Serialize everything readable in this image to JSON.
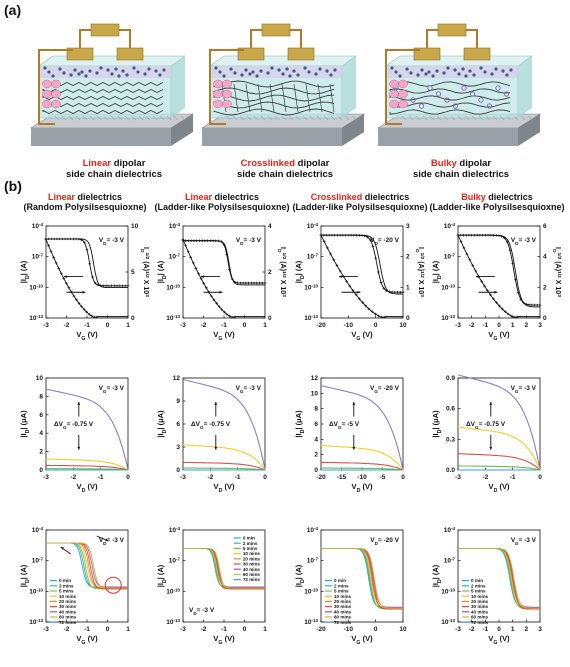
{
  "panel_a_label": "(a)",
  "panel_b_label": "(b)",
  "devices": [
    {
      "highlight": "Linear",
      "rest1": " dipolar",
      "line2": "side chain dielectrics"
    },
    {
      "highlight": "Crosslinked",
      "rest1": " dipolar",
      "line2": "side chain dielectrics"
    },
    {
      "highlight": "Bulky",
      "rest1": " dipolar",
      "line2": "side chain dielectrics"
    }
  ],
  "columns": [
    {
      "highlight": "Linear",
      "rest1": " dielectrics",
      "line2": "(Random Polysilsesquioxne)"
    },
    {
      "highlight": "Linear",
      "rest1": " dielectrics",
      "line2": "(Ladder-like Polysilsesquioxne)"
    },
    {
      "highlight": "Crosslinked",
      "rest1": " dielectrics",
      "line2": "(Ladder-like Polysilsesquioxne)"
    },
    {
      "highlight": "Bulky",
      "rest1": " dielectrics",
      "line2": "(Ladder-like Polysilsesquioxne)"
    }
  ],
  "colors": {
    "highlight": "#e0231b",
    "purple": "#8e7cc3",
    "yellow": "#f2d028",
    "red": "#d9534f",
    "green": "#6bbf4e",
    "blue": "#3aa0d8",
    "timeline": [
      "#3aa0d8",
      "#2eb8b0",
      "#7cc242",
      "#f2c230",
      "#f08a24",
      "#e8462e",
      "#9b59b6",
      "#c8b93a"
    ]
  },
  "legend_times": [
    "0 min",
    "2 mins",
    "5 mins",
    "10 mins",
    "20 mins",
    "30 mins",
    "40 mins",
    "60 mins",
    "72 mins"
  ],
  "chart_data": [
    {
      "type": "line",
      "row": "transfer",
      "column": 1,
      "xlabel": "V_G (V)",
      "ylabel": "|I_D| (A)",
      "y2label": "I_D^1/2 (A)^1/2 X 10^3",
      "x_ticks": [
        "-3",
        "-2",
        "-1",
        "0",
        "1"
      ],
      "y_ticks": [
        "10^-4",
        "10^-7",
        "10^-10",
        "10^-13"
      ],
      "y2_ticks": [
        "10",
        "5",
        "0"
      ],
      "annotation": "V_D= -3 V"
    },
    {
      "type": "line",
      "row": "transfer",
      "column": 2,
      "xlabel": "V_G (V)",
      "ylabel": "|I_D| (A)",
      "y2label": "I_D^1/2 (A)^1/2 X 10^3",
      "x_ticks": [
        "-3",
        "-2",
        "-1",
        "0",
        "1"
      ],
      "y_ticks": [
        "10^-4",
        "10^-7",
        "10^-10",
        "10^-13"
      ],
      "y2_ticks": [
        "4",
        "2",
        "0"
      ],
      "annotation": "V_D= -3 V"
    },
    {
      "type": "line",
      "row": "transfer",
      "column": 3,
      "xlabel": "V_G (V)",
      "ylabel": "|I_D| (A)",
      "y2label": "I_D^1/2 (A)^1/2 X 10^3",
      "x_ticks": [
        "-20",
        "-10",
        "0",
        "10"
      ],
      "y_ticks": [
        "10^-4",
        "10^-7",
        "10^-10",
        "10^-13"
      ],
      "y2_ticks": [
        "3",
        "2",
        "1",
        "0"
      ],
      "annotation": "V_D= -20 V"
    },
    {
      "type": "line",
      "row": "transfer",
      "column": 4,
      "xlabel": "V_G (V)",
      "ylabel": "|I_D| (A)",
      "y2label": "I_D^1/2 (A)^1/2 X 10^3",
      "x_ticks": [
        "-3",
        "-2",
        "-1",
        "0",
        "1",
        "2",
        "3"
      ],
      "y_ticks": [
        "10^-4",
        "10^-7",
        "10^-10",
        "10^-13"
      ],
      "y2_ticks": [
        "6",
        "4",
        "2",
        "0"
      ],
      "annotation": "V_D= -3 V"
    },
    {
      "type": "line",
      "row": "output",
      "column": 1,
      "xlabel": "V_D (V)",
      "ylabel": "|I_D| (μA)",
      "x_ticks": [
        "-3",
        "-2",
        "-1",
        "0"
      ],
      "y_ticks": [
        "10",
        "8",
        "6",
        "4",
        "2",
        "0"
      ],
      "ylim": [
        0,
        10
      ],
      "annotation": "V_G= -3 V",
      "shift": "ΔV_G= -0.75 V",
      "series": [
        {
          "color": "purple",
          "end": 8.8
        },
        {
          "color": "yellow",
          "end": 1.2
        },
        {
          "color": "red",
          "end": 0.5
        },
        {
          "color": "green",
          "end": 0.15
        }
      ]
    },
    {
      "type": "line",
      "row": "output",
      "column": 2,
      "xlabel": "V_D (V)",
      "ylabel": "|I_D| (μA)",
      "x_ticks": [
        "-3",
        "-2",
        "-1",
        "0"
      ],
      "y_ticks": [
        "12",
        "9",
        "6",
        "3",
        "0"
      ],
      "ylim": [
        0,
        12
      ],
      "annotation": "V_G= -3 V",
      "shift": "ΔV_G= -0.75 V",
      "series": [
        {
          "color": "purple",
          "end": 11.8
        },
        {
          "color": "yellow",
          "end": 3.3
        },
        {
          "color": "red",
          "end": 1.0
        },
        {
          "color": "green",
          "end": 0.25
        }
      ]
    },
    {
      "type": "line",
      "row": "output",
      "column": 3,
      "xlabel": "V_D (V)",
      "ylabel": "|I_D| (μA)",
      "x_ticks": [
        "-20",
        "-15",
        "-10",
        "-5",
        "0"
      ],
      "y_ticks": [
        "12",
        "10",
        "8",
        "6",
        "4",
        "2",
        "0"
      ],
      "ylim": [
        0,
        12
      ],
      "annotation": "V_G= -20 V",
      "shift": "ΔV_G= -5 V",
      "series": [
        {
          "color": "purple",
          "end": 11
        },
        {
          "color": "yellow",
          "end": 3.2
        },
        {
          "color": "red",
          "end": 1.0
        },
        {
          "color": "green",
          "end": 0.25
        }
      ]
    },
    {
      "type": "line",
      "row": "output",
      "column": 4,
      "xlabel": "V_D (V)",
      "ylabel": "|I_D| (μA)",
      "x_ticks": [
        "-3",
        "-2",
        "-1",
        "0"
      ],
      "y_ticks": [
        "0.9",
        "0.6",
        "0.3",
        "0.0"
      ],
      "ylim": [
        0,
        0.9
      ],
      "annotation": "V_G= -3 V",
      "shift": "ΔV_G= -0.75 V",
      "series": [
        {
          "color": "purple",
          "end": 0.93
        },
        {
          "color": "yellow",
          "end": 0.42
        },
        {
          "color": "red",
          "end": 0.16
        },
        {
          "color": "green",
          "end": 0.04
        }
      ]
    },
    {
      "type": "line",
      "row": "stress",
      "column": 1,
      "xlabel": "V_G (V)",
      "ylabel": "|I_D| (A)",
      "x_ticks": [
        "-3",
        "-2",
        "-1",
        "0",
        "1"
      ],
      "y_ticks": [
        "10^-4",
        "10^-7",
        "10^-10",
        "10^-13"
      ],
      "annotation": "V_D= -3 V"
    },
    {
      "type": "line",
      "row": "stress",
      "column": 2,
      "xlabel": "V_G (V)",
      "ylabel": "|I_D| (A)",
      "x_ticks": [
        "-3",
        "-2",
        "-1",
        "0",
        "1"
      ],
      "y_ticks": [
        "10^-4",
        "10^-7",
        "10^-10",
        "10^-13"
      ],
      "annotation": "V_D= -3 V"
    },
    {
      "type": "line",
      "row": "stress",
      "column": 3,
      "xlabel": "V_G (V)",
      "ylabel": "|I_D| (A)",
      "x_ticks": [
        "-20",
        "-10",
        "0",
        "10"
      ],
      "y_ticks": [
        "10^-4",
        "10^-7",
        "10^-10",
        "10^-13"
      ],
      "annotation": "V_D= -20 V"
    },
    {
      "type": "line",
      "row": "stress",
      "column": 4,
      "xlabel": "V_G (V)",
      "ylabel": "|I_D| (A)",
      "x_ticks": [
        "-3",
        "-2",
        "-1",
        "0",
        "1",
        "2",
        "3"
      ],
      "y_ticks": [
        "10^-4",
        "10^-7",
        "10^-10",
        "10^-13"
      ],
      "annotation": "V_D= -3 V"
    }
  ]
}
